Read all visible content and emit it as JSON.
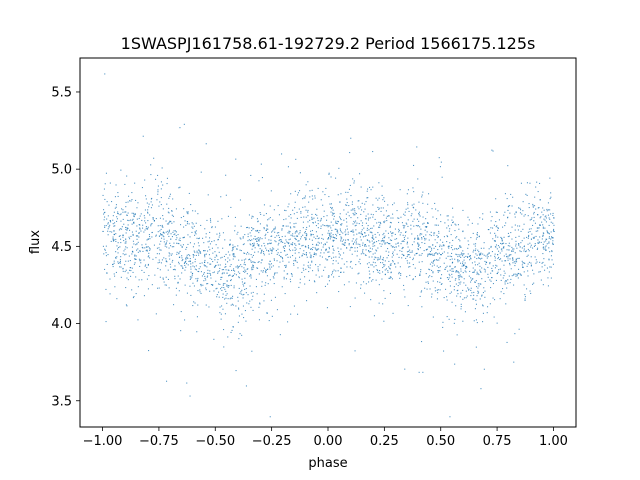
{
  "chart_data": {
    "type": "scatter",
    "title": "1SWASPJ161758.61-192729.2 Period 1566175.125s",
    "xlabel": "phase",
    "ylabel": "flux",
    "xlim": [
      -1.1,
      1.1
    ],
    "ylim": [
      3.33,
      5.72
    ],
    "grid": false,
    "x_ticks": [
      -1.0,
      -0.75,
      -0.5,
      -0.25,
      0.0,
      0.25,
      0.5,
      0.75,
      1.0
    ],
    "x_tick_labels": [
      "−1.00",
      "−0.75",
      "−0.50",
      "−0.25",
      "0.00",
      "0.25",
      "0.50",
      "0.75",
      "1.00"
    ],
    "y_ticks": [
      3.5,
      4.0,
      4.5,
      5.0,
      5.5
    ],
    "y_tick_labels": [
      "3.5",
      "4.0",
      "4.5",
      "5.0",
      "5.5"
    ],
    "series": [
      {
        "color": "#1f77b4",
        "x": [
          -1.0,
          -0.95,
          -0.9,
          -0.85,
          -0.8,
          -0.75,
          -0.7,
          -0.65,
          -0.6,
          -0.55,
          -0.5,
          -0.45,
          -0.4,
          -0.35,
          -0.3,
          -0.25,
          -0.2,
          -0.15,
          -0.1,
          -0.05,
          0.0,
          0.05,
          0.1,
          0.15,
          0.2,
          0.25,
          0.3,
          0.35,
          0.4,
          0.45,
          0.5,
          0.55,
          0.6,
          0.65,
          0.7,
          0.75,
          0.8,
          0.85,
          0.9,
          0.95,
          1.0
        ],
        "y": [
          4.6,
          4.58,
          4.55,
          4.52,
          4.55,
          4.57,
          4.55,
          4.5,
          4.45,
          4.4,
          4.38,
          4.33,
          4.37,
          4.42,
          4.46,
          4.48,
          4.5,
          4.52,
          4.55,
          4.57,
          4.56,
          4.58,
          4.6,
          4.58,
          4.55,
          4.52,
          4.5,
          4.53,
          4.55,
          4.5,
          4.45,
          4.4,
          4.38,
          4.35,
          4.4,
          4.45,
          4.48,
          4.5,
          4.55,
          4.57,
          4.6
        ]
      }
    ]
  }
}
